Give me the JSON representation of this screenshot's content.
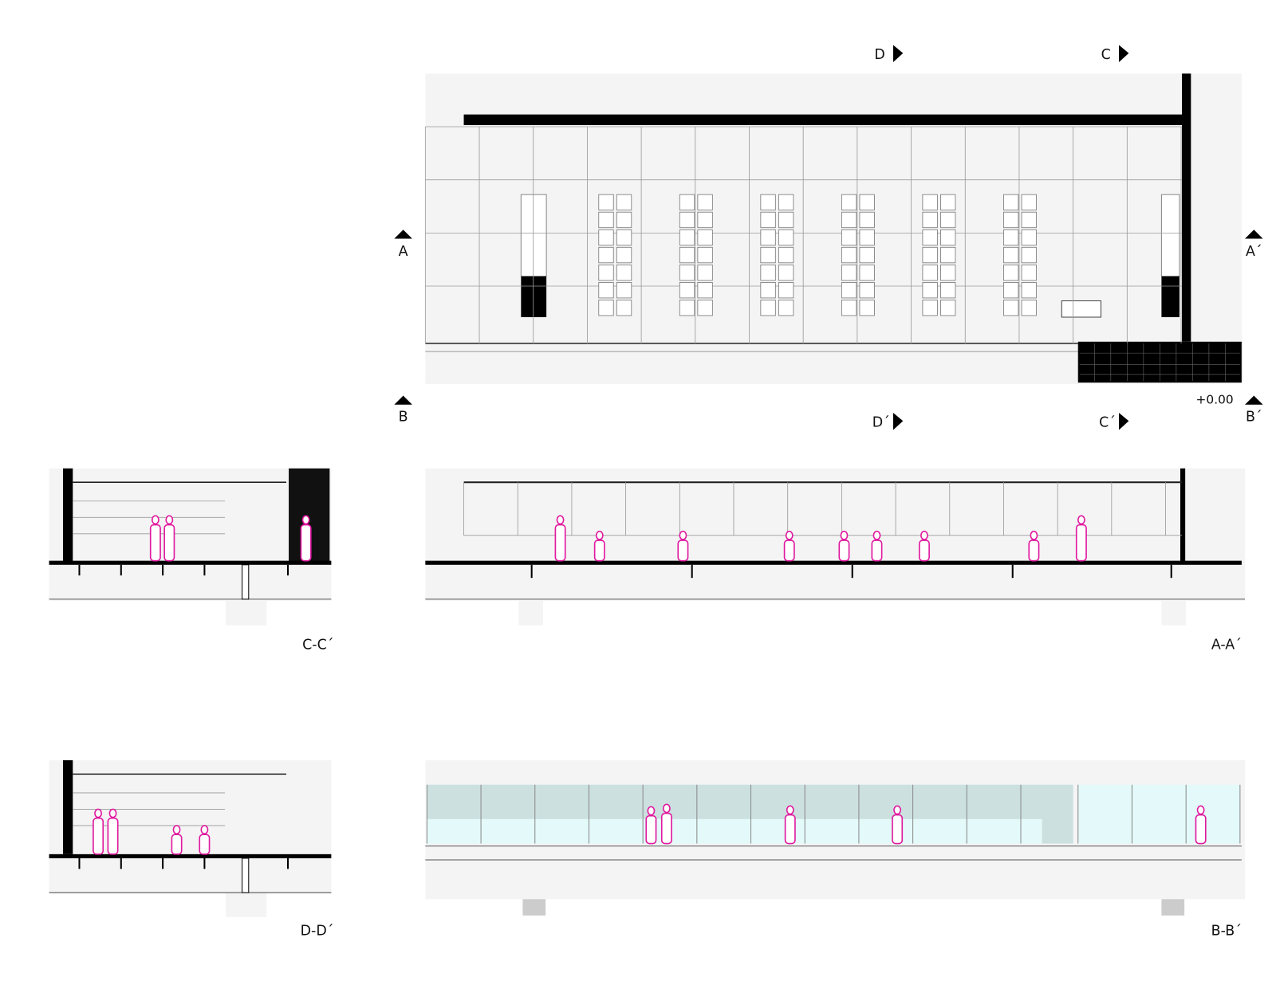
{
  "plan": {
    "cut_marks": [
      {
        "label": "D"
      },
      {
        "label": "C"
      },
      {
        "label": "A"
      },
      {
        "label": "A´"
      },
      {
        "label": "B"
      },
      {
        "label": "B´"
      },
      {
        "label": "D´"
      },
      {
        "label": "C´"
      }
    ],
    "level": "+0.00"
  },
  "sections": [
    {
      "label": "C-C´"
    },
    {
      "label": "A-A´"
    },
    {
      "label": "D-D´"
    },
    {
      "label": "B-B´"
    }
  ]
}
